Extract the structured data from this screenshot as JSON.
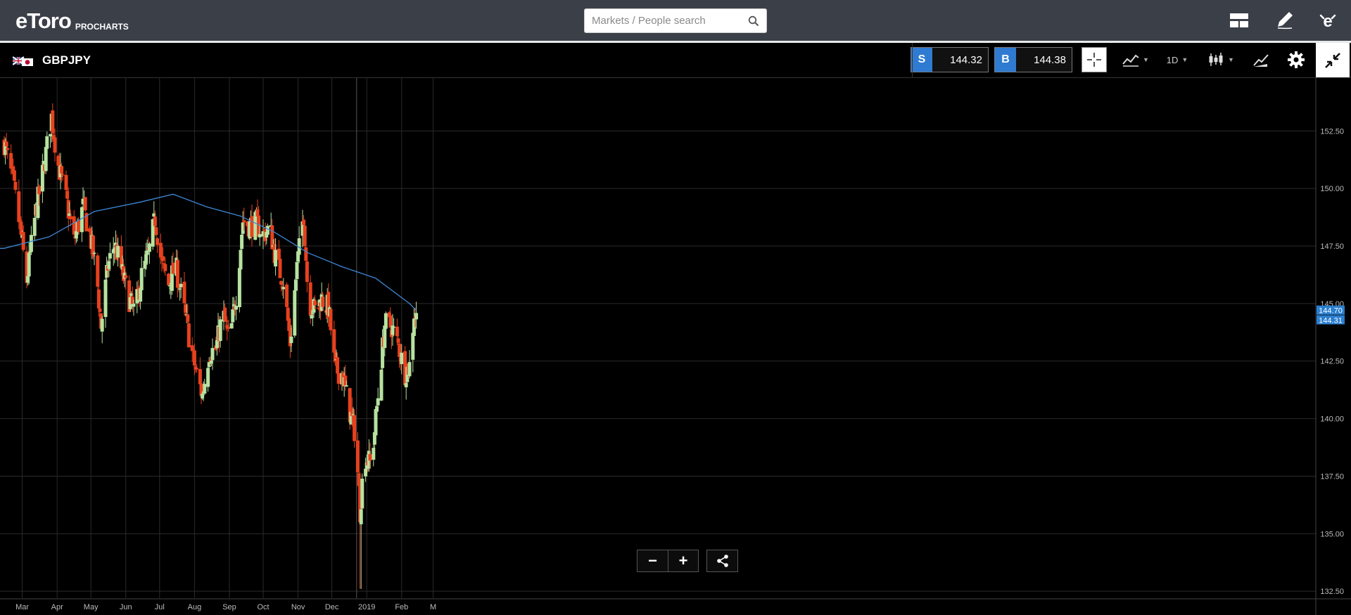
{
  "app": {
    "brand": "eToro",
    "sub": "PROCHARTS"
  },
  "search": {
    "placeholder": "Markets / People search"
  },
  "instrument": {
    "symbol": "GBPJPY"
  },
  "quotes": {
    "sell_label": "S",
    "sell_price": "144.32",
    "buy_label": "B",
    "buy_price": "144.38"
  },
  "toolbar": {
    "timeframe": "1D"
  },
  "colors": {
    "up": "#b7e2a0",
    "down": "#e8411e",
    "ma": "#3d87d6",
    "grid": "#2a2a2a",
    "label_bg": "#2a7fd0"
  },
  "zoom": {
    "minus": "−",
    "plus": "+"
  },
  "chart_data": {
    "type": "candlestick",
    "x_tick_labels": [
      "Mar",
      "Apr",
      "May",
      "Jun",
      "Jul",
      "Aug",
      "Sep",
      "Oct",
      "Nov",
      "Dec",
      "2019",
      "Feb",
      "M"
    ],
    "y_ticks": [
      "152.50",
      "150.00",
      "147.50",
      "145.00",
      "142.50",
      "140.00",
      "137.50",
      "135.00",
      "132.50"
    ],
    "ylim": [
      132.2,
      154.8
    ],
    "price_labels": {
      "ma": "144.70",
      "last": "144.31"
    },
    "period": "2018-02-13 to 2019-02-22",
    "anchors": [
      [
        0,
        152.0
      ],
      [
        8,
        150.2
      ],
      [
        14,
        148.3
      ],
      [
        20,
        146.0
      ],
      [
        28,
        149.0
      ],
      [
        34,
        150.6
      ],
      [
        42,
        153.1
      ],
      [
        48,
        151.0
      ],
      [
        56,
        149.3
      ],
      [
        62,
        147.7
      ],
      [
        70,
        149.2
      ],
      [
        76,
        148.0
      ],
      [
        82,
        146.3
      ],
      [
        86,
        144.0
      ],
      [
        92,
        146.6
      ],
      [
        98,
        147.6
      ],
      [
        104,
        146.5
      ],
      [
        110,
        145.3
      ],
      [
        116,
        144.6
      ],
      [
        122,
        146.2
      ],
      [
        128,
        147.1
      ],
      [
        134,
        148.7
      ],
      [
        140,
        146.7
      ],
      [
        146,
        145.8
      ],
      [
        152,
        146.7
      ],
      [
        158,
        145.2
      ],
      [
        164,
        143.6
      ],
      [
        170,
        142.1
      ],
      [
        176,
        141.0
      ],
      [
        182,
        142.9
      ],
      [
        188,
        143.0
      ],
      [
        194,
        144.6
      ],
      [
        200,
        143.3
      ],
      [
        206,
        145.4
      ],
      [
        212,
        148.6
      ],
      [
        218,
        148.4
      ],
      [
        224,
        148.5
      ],
      [
        230,
        148.0
      ],
      [
        236,
        148.3
      ],
      [
        242,
        146.7
      ],
      [
        248,
        146.0
      ],
      [
        254,
        143.3
      ],
      [
        260,
        146.6
      ],
      [
        266,
        148.9
      ],
      [
        270,
        145.1
      ],
      [
        276,
        144.7
      ],
      [
        282,
        145.2
      ],
      [
        288,
        144.8
      ],
      [
        294,
        142.1
      ],
      [
        300,
        142.0
      ],
      [
        306,
        140.5
      ],
      [
        312,
        139.3
      ],
      [
        316,
        136.0
      ],
      [
        320,
        138.4
      ],
      [
        326,
        138.0
      ],
      [
        332,
        141.0
      ],
      [
        338,
        144.1
      ],
      [
        344,
        144.0
      ],
      [
        350,
        143.2
      ],
      [
        356,
        142.0
      ],
      [
        360,
        142.3
      ],
      [
        364,
        144.6
      ],
      [
        366,
        144.4
      ]
    ],
    "moving_average": [
      [
        0,
        147.4
      ],
      [
        40,
        147.9
      ],
      [
        80,
        149.0
      ],
      [
        120,
        149.4
      ],
      [
        150,
        149.75
      ],
      [
        180,
        149.2
      ],
      [
        210,
        148.8
      ],
      [
        240,
        148.1
      ],
      [
        270,
        147.2
      ],
      [
        300,
        146.6
      ],
      [
        330,
        146.1
      ],
      [
        360,
        145.0
      ],
      [
        366,
        144.7
      ]
    ],
    "spikes": [
      {
        "day": 316,
        "low": 132.6
      }
    ]
  }
}
